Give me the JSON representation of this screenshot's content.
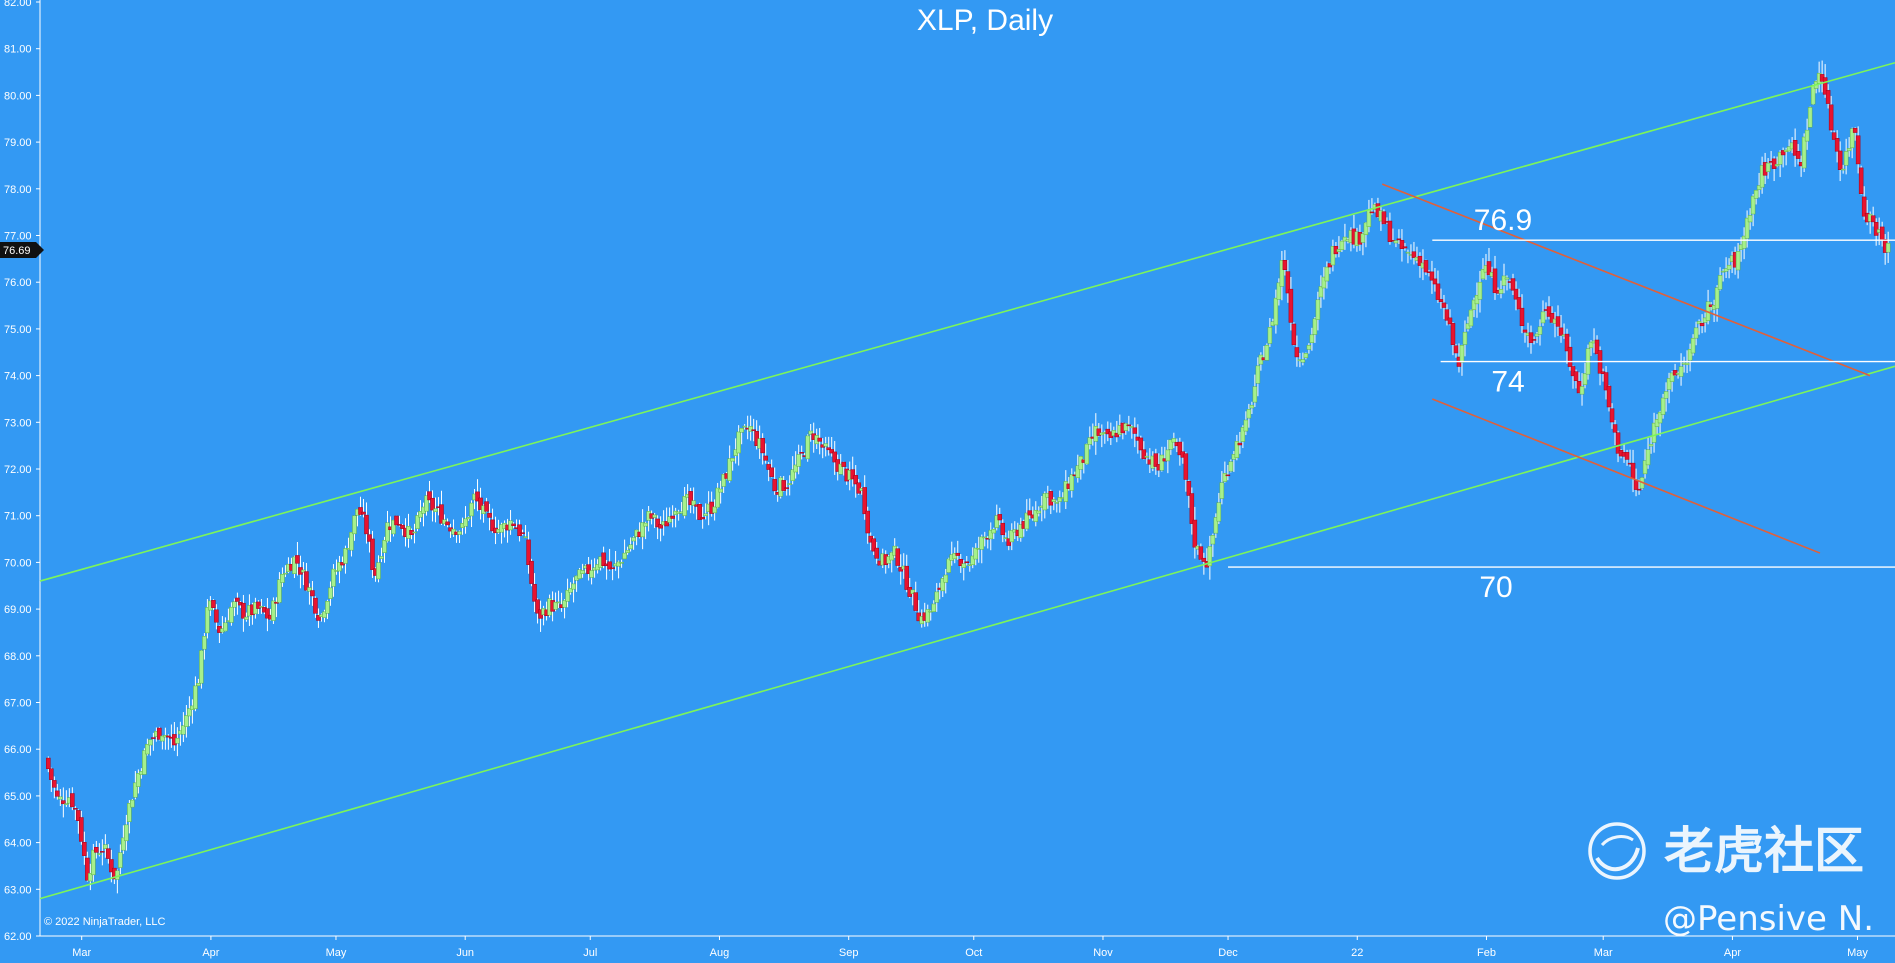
{
  "title": "XLP, Daily",
  "copyright": "© 2022 NinjaTrader, LLC",
  "watermark": {
    "logo_text": "老虎社区",
    "handle": "@Pensive N."
  },
  "colors": {
    "background": "#3399f3",
    "up_candle": "#a6f08c",
    "down_candle": "#e8132f",
    "wick": "#ffffff",
    "channel_line": "#7cf55a",
    "wedge_line": "#e0603a",
    "level_line": "#ffffff",
    "axis_text": "#ffffff"
  },
  "current_price": {
    "value": 76.69,
    "label": "76.69"
  },
  "chart_data": {
    "type": "candlestick",
    "title": "XLP, Daily",
    "xlabel": "",
    "ylabel": "",
    "ylim": [
      62,
      82
    ],
    "y_ticks": [
      "62.00",
      "63.00",
      "64.00",
      "65.00",
      "66.00",
      "67.00",
      "68.00",
      "69.00",
      "70.00",
      "71.00",
      "72.00",
      "73.00",
      "74.00",
      "75.00",
      "76.00",
      "77.00",
      "78.00",
      "79.00",
      "80.00",
      "81.00",
      "82.00"
    ],
    "x_ticks": [
      {
        "label": "Mar",
        "day": 24
      },
      {
        "label": "Apr",
        "day": 55
      },
      {
        "label": "May",
        "day": 85
      },
      {
        "label": "Jun",
        "day": 116
      },
      {
        "label": "Jul",
        "day": 146
      },
      {
        "label": "Aug",
        "day": 177
      },
      {
        "label": "Sep",
        "day": 208
      },
      {
        "label": "Oct",
        "day": 238
      },
      {
        "label": "Nov",
        "day": 269
      },
      {
        "label": "Dec",
        "day": 299
      },
      {
        "label": "22",
        "day": 330
      },
      {
        "label": "Feb",
        "day": 361
      },
      {
        "label": "Mar",
        "day": 389
      },
      {
        "label": "Apr",
        "day": 420
      },
      {
        "label": "May",
        "day": 450
      }
    ],
    "x_domain": [
      14,
      459
    ],
    "price_path": [
      [
        16,
        65.8
      ],
      [
        19,
        64.9
      ],
      [
        22,
        65.0
      ],
      [
        24,
        64.5
      ],
      [
        26,
        63.3
      ],
      [
        28,
        63.8
      ],
      [
        30,
        63.9
      ],
      [
        33,
        63.2
      ],
      [
        35,
        64.4
      ],
      [
        38,
        65.4
      ],
      [
        41,
        66.2
      ],
      [
        44,
        66.4
      ],
      [
        47,
        66.1
      ],
      [
        50,
        66.7
      ],
      [
        53,
        67.6
      ],
      [
        55,
        69.2
      ],
      [
        58,
        68.5
      ],
      [
        61,
        69.1
      ],
      [
        64,
        68.9
      ],
      [
        67,
        69.0
      ],
      [
        70,
        68.8
      ],
      [
        73,
        69.8
      ],
      [
        76,
        70.1
      ],
      [
        79,
        69.5
      ],
      [
        82,
        68.8
      ],
      [
        85,
        69.7
      ],
      [
        88,
        70.2
      ],
      [
        91,
        71.2
      ],
      [
        93,
        70.7
      ],
      [
        95,
        69.7
      ],
      [
        98,
        70.8
      ],
      [
        101,
        70.9
      ],
      [
        104,
        70.5
      ],
      [
        107,
        71.3
      ],
      [
        110,
        71.1
      ],
      [
        113,
        70.8
      ],
      [
        116,
        70.7
      ],
      [
        119,
        71.4
      ],
      [
        122,
        70.9
      ],
      [
        125,
        70.7
      ],
      [
        128,
        70.9
      ],
      [
        131,
        70.5
      ],
      [
        134,
        68.8
      ],
      [
        137,
        69.1
      ],
      [
        140,
        69.0
      ],
      [
        143,
        69.6
      ],
      [
        146,
        69.8
      ],
      [
        149,
        70.1
      ],
      [
        152,
        69.8
      ],
      [
        155,
        70.2
      ],
      [
        158,
        70.6
      ],
      [
        161,
        71.0
      ],
      [
        164,
        70.7
      ],
      [
        167,
        71.2
      ],
      [
        170,
        71.3
      ],
      [
        173,
        71.0
      ],
      [
        176,
        71.2
      ],
      [
        179,
        71.8
      ],
      [
        182,
        72.6
      ],
      [
        185,
        72.9
      ],
      [
        188,
        72.4
      ],
      [
        191,
        71.6
      ],
      [
        194,
        71.7
      ],
      [
        197,
        72.2
      ],
      [
        200,
        72.8
      ],
      [
        203,
        72.4
      ],
      [
        206,
        72.1
      ],
      [
        209,
        71.8
      ],
      [
        212,
        71.5
      ],
      [
        214,
        70.4
      ],
      [
        217,
        70.0
      ],
      [
        220,
        70.2
      ],
      [
        223,
        69.5
      ],
      [
        226,
        68.8
      ],
      [
        229,
        69.0
      ],
      [
        232,
        69.9
      ],
      [
        235,
        70.1
      ],
      [
        238,
        70.0
      ],
      [
        241,
        70.5
      ],
      [
        244,
        70.9
      ],
      [
        247,
        70.4
      ],
      [
        250,
        70.8
      ],
      [
        253,
        71.0
      ],
      [
        256,
        71.5
      ],
      [
        259,
        71.2
      ],
      [
        262,
        71.8
      ],
      [
        265,
        72.2
      ],
      [
        268,
        72.8
      ],
      [
        271,
        72.6
      ],
      [
        274,
        72.9
      ],
      [
        277,
        72.8
      ],
      [
        280,
        72.3
      ],
      [
        283,
        72.0
      ],
      [
        286,
        72.6
      ],
      [
        289,
        72.1
      ],
      [
        292,
        70.3
      ],
      [
        295,
        70.0
      ],
      [
        298,
        71.6
      ],
      [
        301,
        72.4
      ],
      [
        304,
        72.9
      ],
      [
        307,
        74.1
      ],
      [
        310,
        75.0
      ],
      [
        313,
        76.6
      ],
      [
        316,
        74.4
      ],
      [
        319,
        74.6
      ],
      [
        322,
        75.8
      ],
      [
        325,
        76.7
      ],
      [
        328,
        77.1
      ],
      [
        331,
        76.9
      ],
      [
        334,
        77.6
      ],
      [
        337,
        77.3
      ],
      [
        340,
        76.8
      ],
      [
        343,
        76.6
      ],
      [
        346,
        76.5
      ],
      [
        349,
        75.9
      ],
      [
        352,
        75.3
      ],
      [
        355,
        74.2
      ],
      [
        358,
        75.4
      ],
      [
        361,
        76.4
      ],
      [
        364,
        75.9
      ],
      [
        367,
        76.1
      ],
      [
        370,
        75.2
      ],
      [
        373,
        74.7
      ],
      [
        376,
        75.5
      ],
      [
        379,
        75.1
      ],
      [
        382,
        74.2
      ],
      [
        384,
        73.6
      ],
      [
        387,
        74.9
      ],
      [
        390,
        73.8
      ],
      [
        393,
        72.5
      ],
      [
        396,
        72.1
      ],
      [
        398,
        71.4
      ],
      [
        401,
        72.6
      ],
      [
        404,
        73.6
      ],
      [
        407,
        74.0
      ],
      [
        410,
        74.4
      ],
      [
        413,
        75.1
      ],
      [
        416,
        75.6
      ],
      [
        419,
        76.3
      ],
      [
        422,
        76.5
      ],
      [
        425,
        77.6
      ],
      [
        428,
        78.4
      ],
      [
        431,
        78.6
      ],
      [
        434,
        79.0
      ],
      [
        437,
        78.5
      ],
      [
        440,
        80.1
      ],
      [
        442,
        80.6
      ],
      [
        444,
        79.5
      ],
      [
        447,
        78.4
      ],
      [
        450,
        79.4
      ],
      [
        452,
        77.6
      ],
      [
        455,
        77.2
      ],
      [
        458,
        76.7
      ]
    ],
    "drawn_lines": [
      {
        "name": "upper-channel-line",
        "color": "green",
        "from": [
          14,
          69.6
        ],
        "to": [
          459,
          80.7
        ]
      },
      {
        "name": "lower-channel-line",
        "color": "green",
        "from": [
          14,
          62.8
        ],
        "to": [
          459,
          74.2
        ]
      },
      {
        "name": "wedge-upper-line",
        "color": "red",
        "from": [
          336,
          78.1
        ],
        "to": [
          453,
          74.0
        ]
      },
      {
        "name": "wedge-lower-line",
        "color": "red",
        "from": [
          348,
          73.5
        ],
        "to": [
          441,
          70.2
        ]
      }
    ],
    "levels": [
      {
        "label": "76.9",
        "value": 76.9,
        "from_day": 348
      },
      {
        "label": "74",
        "value": 74.3,
        "from_day": 350
      },
      {
        "label": "70",
        "value": 69.9,
        "from_day": 299
      }
    ]
  }
}
